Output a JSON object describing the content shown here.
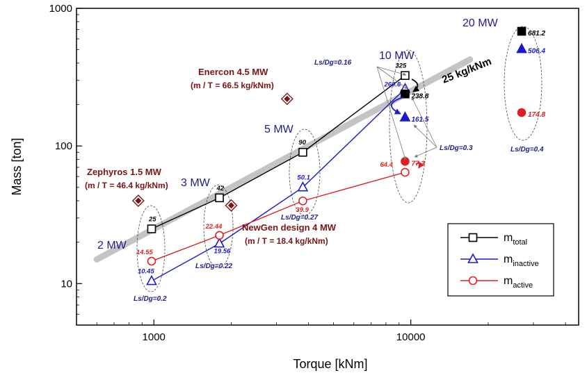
{
  "chart_data": {
    "type": "scatter",
    "xlabel": "Torque [kNm]",
    "ylabel": "Mass [ton]",
    "xscale": "log",
    "yscale": "log",
    "xlim": [
      500,
      45000
    ],
    "ylim": [
      5,
      1000
    ],
    "xticks": [
      {
        "value": 1000,
        "label": "1000"
      },
      {
        "value": 10000,
        "label": "10000"
      }
    ],
    "yticks": [
      {
        "value": 10,
        "label": "10"
      },
      {
        "value": 100,
        "label": "100"
      },
      {
        "value": 1000,
        "label": "1000"
      }
    ],
    "grid": false,
    "legend_position": "bottom-right",
    "series": [
      {
        "name": "m_total",
        "legend_main": "m",
        "legend_sub": "total",
        "color": "#000000",
        "marker": "square",
        "points": [
          {
            "x": 980,
            "y": 25,
            "label": "25"
          },
          {
            "x": 1800,
            "y": 42,
            "label": "42"
          },
          {
            "x": 3800,
            "y": 90,
            "label": "90"
          },
          {
            "x": 9500,
            "y": 325,
            "label": "325"
          }
        ]
      },
      {
        "name": "m_inactive",
        "legend_main": "m",
        "legend_sub": "inactive",
        "color": "#1a1acc",
        "marker": "triangle",
        "points": [
          {
            "x": 980,
            "y": 10.45,
            "label": "10.45"
          },
          {
            "x": 1800,
            "y": 19.56,
            "label": "19.56"
          },
          {
            "x": 3800,
            "y": 50.1,
            "label": "50.1"
          },
          {
            "x": 9500,
            "y": 260.6,
            "label": "260.6"
          }
        ]
      },
      {
        "name": "m_active",
        "legend_main": "m",
        "legend_sub": "active",
        "color": "#e02020",
        "marker": "circle",
        "points": [
          {
            "x": 980,
            "y": 14.55,
            "label": "14.55"
          },
          {
            "x": 1800,
            "y": 22.44,
            "label": "22.44"
          },
          {
            "x": 3800,
            "y": 39.9,
            "label": "39.9"
          },
          {
            "x": 9500,
            "y": 64.4,
            "label": "64.4"
          }
        ]
      }
    ],
    "filled_points": [
      {
        "x": 9500,
        "y": 238.8,
        "label": "238.8",
        "marker": "square",
        "color": "#000000"
      },
      {
        "x": 9500,
        "y": 161.5,
        "label": "161.5",
        "marker": "triangle",
        "color": "#1a1acc"
      },
      {
        "x": 9500,
        "y": 77.3,
        "label": "77.3",
        "marker": "circle",
        "color": "#e02020"
      },
      {
        "x": 27000,
        "y": 681.2,
        "label": "681.2",
        "marker": "square",
        "color": "#000000"
      },
      {
        "x": 27000,
        "y": 506.4,
        "label": "506.4",
        "marker": "triangle",
        "color": "#1a1acc"
      },
      {
        "x": 27000,
        "y": 174.8,
        "label": "174.8",
        "marker": "circle",
        "color": "#e02020"
      }
    ],
    "commercial": [
      {
        "x": 870,
        "y": 40,
        "name": "Zephyros 1.5 MW",
        "ratio": "(m / T = 46.4 kg/kNm)"
      },
      {
        "x": 3300,
        "y": 220,
        "name": "Enercon 4.5 MW",
        "ratio": "(m / T = 66.5 kg/kNm)"
      },
      {
        "x": 2000,
        "y": 37,
        "name": "NewGen design 4 MW",
        "ratio": "(m / T = 18.4 kg/kNm)"
      }
    ],
    "trend": {
      "x": [
        600,
        17000
      ],
      "y": [
        15,
        425
      ],
      "label": "25 kg/kNm",
      "color": "#c0c0c0"
    },
    "power_labels": [
      "2 MW",
      "3 MW",
      "5 MW",
      "10 MW",
      "20 MW"
    ],
    "ratio_labels": [
      "Ls/Dg=0.2",
      "Ls/Dg=0.22",
      "Ls/Dg=0.27",
      "Ls/Dg=0.16",
      "Ls/Dg=0.3",
      "Ls/Dg=0.4"
    ]
  }
}
